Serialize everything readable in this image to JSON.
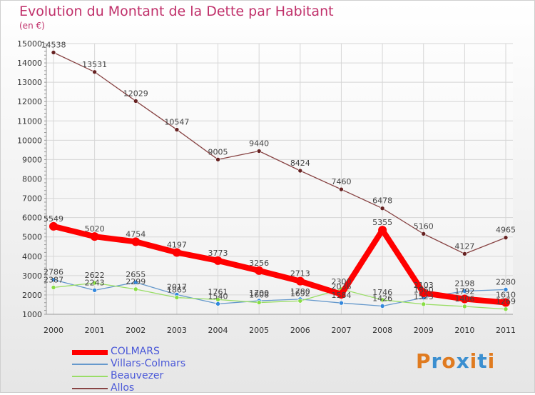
{
  "chart_data": {
    "type": "line",
    "title": "Evolution du Montant de la Dette par Habitant",
    "subtitle": "(en €)",
    "xlabel": "",
    "ylabel": "",
    "categories": [
      "2000",
      "2001",
      "2002",
      "2003",
      "2004",
      "2005",
      "2006",
      "2007",
      "2008",
      "2009",
      "2010",
      "2011"
    ],
    "ylim": [
      1000,
      15000
    ],
    "yticks": [
      "1000",
      "2000",
      "3000",
      "4000",
      "5000",
      "6000",
      "7000",
      "8000",
      "9000",
      "10000",
      "11000",
      "12000",
      "13000",
      "14000",
      "15000"
    ],
    "grid": true,
    "legend_position": "bottom-left",
    "series": [
      {
        "name": "COLMARS",
        "color": "#ff0000",
        "marker": "#ff0000",
        "values": [
          5549,
          5020,
          4754,
          4197,
          3773,
          3256,
          2713,
          2036,
          5355,
          2103,
          1792,
          1610
        ],
        "labels": [
          "5549",
          "5020",
          "4754",
          "4197",
          "3773",
          "3256",
          "2713",
          "2036",
          "5355",
          "2103",
          "1792",
          "1610"
        ]
      },
      {
        "name": "Villars-Colmars",
        "color": "#6699cc",
        "marker": "#3388dd",
        "values": [
          2786,
          2243,
          2655,
          2017,
          1540,
          1700,
          1780,
          1584,
          1426,
          1860,
          2198,
          2280
        ],
        "labels": [
          "2786",
          "2243",
          "2655",
          "2017",
          "1540",
          "1700",
          "1780",
          "1584",
          "1426",
          "1860",
          "2198",
          "2280"
        ]
      },
      {
        "name": "Beauvezer",
        "color": "#99dd66",
        "marker": "#88dd44",
        "values": [
          2387,
          2622,
          2299,
          1865,
          1761,
          1608,
          1692,
          2300,
          1746,
          1523,
          1406,
          1269
        ],
        "labels": [
          "2387",
          "2622",
          "2299",
          "1865",
          "1761",
          "1608",
          "1692",
          "2300",
          "1746",
          "1523",
          "1406",
          "1269"
        ]
      },
      {
        "name": "Allos",
        "color": "#884444",
        "marker": "#662222",
        "values": [
          14538,
          13531,
          12029,
          10547,
          9005,
          9440,
          8424,
          7460,
          6478,
          5160,
          4127,
          4965
        ],
        "labels": [
          "14538",
          "13531",
          "12029",
          "10547",
          "9005",
          "9440",
          "8424",
          "7460",
          "6478",
          "5160",
          "4127",
          "4965"
        ]
      }
    ]
  },
  "brand": {
    "letters": [
      "P",
      "r",
      "o",
      "x",
      "i",
      "t",
      "i"
    ],
    "colors": [
      "#e07b20",
      "#3b8fd0",
      "#e07b20",
      "#3b8fd0",
      "#e07b20",
      "#3b8fd0",
      "#e07b20"
    ]
  }
}
